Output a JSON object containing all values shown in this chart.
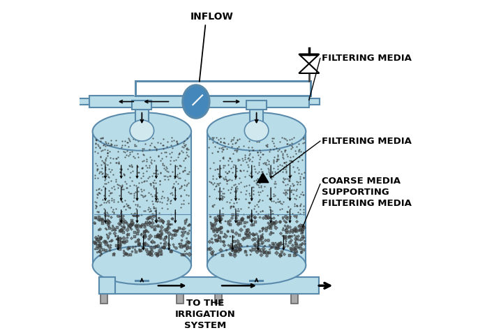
{
  "bg_color": "#ffffff",
  "tank_fill_color": "#b8dce8",
  "tank_border_color": "#5a8aab",
  "pipe_color": "#b8dce8",
  "pipe_border_color": "#5a8aab",
  "gauge_color": "#4488bb",
  "leg_color": "#aaaaaa",
  "leg_border_color": "#666666",
  "labels": {
    "inflow": "INFLOW",
    "filtering_media_top": "FILTERING MEDIA",
    "filtering_media_mid": "FILTERING MEDIA",
    "coarse_media": "COARSE MEDIA\nSUPPORTING\nFILTERING MEDIA",
    "outflow": "TO THE\nIRRIGATION\nSYSTEM"
  },
  "t1x": 0.04,
  "t1y": 0.17,
  "t1w": 0.31,
  "t1h": 0.42,
  "t1ry": 0.06,
  "t2x": 0.4,
  "t2y": 0.17,
  "t2w": 0.31,
  "t2h": 0.42,
  "t2ry": 0.06
}
